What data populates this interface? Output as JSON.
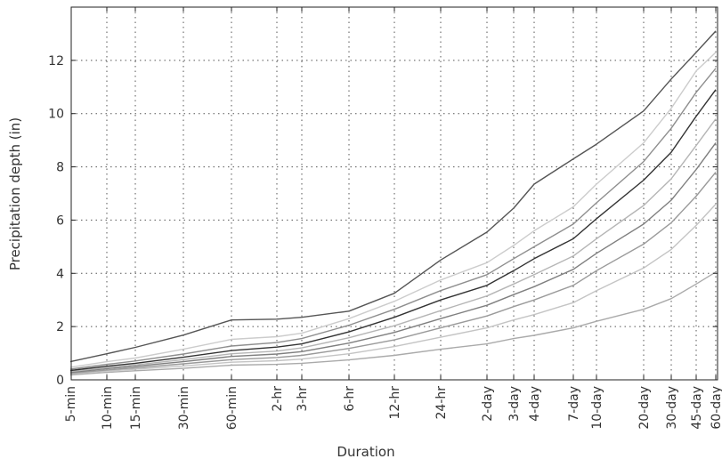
{
  "chart_data": {
    "type": "line",
    "title": "",
    "xlabel": "Duration",
    "ylabel": "Precipitation depth (in)",
    "categories": [
      "5-min",
      "10-min",
      "15-min",
      "30-min",
      "60-min",
      "2-hr",
      "3-hr",
      "6-hr",
      "12-hr",
      "24-hr",
      "2-day",
      "3-day",
      "4-day",
      "7-day",
      "10-day",
      "20-day",
      "30-day",
      "45-day",
      "60-day"
    ],
    "yticks": [
      "0",
      "2",
      "4",
      "6",
      "8",
      "10",
      "12"
    ],
    "ylim": [
      0,
      14
    ],
    "grid": true,
    "legend": "none",
    "series": [
      {
        "color": "#aaaaaa",
        "values": [
          0.18,
          0.28,
          0.34,
          0.43,
          0.55,
          0.58,
          0.62,
          0.75,
          0.92,
          1.15,
          1.35,
          1.55,
          1.67,
          1.95,
          2.2,
          2.65,
          3.05,
          3.6,
          4.05
        ]
      },
      {
        "color": "#c4c4c4",
        "values": [
          0.22,
          0.33,
          0.4,
          0.52,
          0.66,
          0.72,
          0.78,
          0.98,
          1.25,
          1.6,
          1.95,
          2.25,
          2.45,
          2.9,
          3.35,
          4.2,
          4.9,
          5.8,
          6.6
        ]
      },
      {
        "color": "#9a9a9a",
        "values": [
          0.25,
          0.37,
          0.45,
          0.6,
          0.76,
          0.84,
          0.92,
          1.18,
          1.5,
          1.95,
          2.4,
          2.75,
          3.0,
          3.55,
          4.1,
          5.1,
          5.9,
          6.9,
          7.8
        ]
      },
      {
        "color": "#7f7f7f",
        "values": [
          0.28,
          0.42,
          0.51,
          0.68,
          0.88,
          0.97,
          1.06,
          1.38,
          1.78,
          2.3,
          2.8,
          3.2,
          3.5,
          4.15,
          4.75,
          5.85,
          6.75,
          7.9,
          8.9
        ]
      },
      {
        "color": "#b5b5b5",
        "values": [
          0.31,
          0.46,
          0.56,
          0.76,
          0.98,
          1.08,
          1.2,
          1.58,
          2.03,
          2.6,
          3.15,
          3.6,
          3.95,
          4.65,
          5.3,
          6.55,
          7.55,
          8.8,
          9.8
        ]
      },
      {
        "color": "#333333",
        "values": [
          0.35,
          0.51,
          0.62,
          0.85,
          1.1,
          1.23,
          1.35,
          1.8,
          2.35,
          3.0,
          3.55,
          4.1,
          4.55,
          5.3,
          6.05,
          7.5,
          8.55,
          9.9,
          10.9
        ]
      },
      {
        "color": "#8e8e8e",
        "values": [
          0.4,
          0.58,
          0.71,
          0.97,
          1.27,
          1.4,
          1.55,
          2.05,
          2.65,
          3.35,
          3.95,
          4.55,
          5.0,
          5.85,
          6.65,
          8.2,
          9.45,
          10.8,
          11.7
        ]
      },
      {
        "color": "#cccccc",
        "values": [
          0.47,
          0.68,
          0.82,
          1.15,
          1.52,
          1.62,
          1.75,
          2.3,
          2.95,
          3.75,
          4.4,
          5.05,
          5.6,
          6.5,
          7.35,
          8.9,
          10.2,
          11.6,
          12.3
        ]
      },
      {
        "color": "#555555",
        "values": [
          0.68,
          0.98,
          1.22,
          1.68,
          2.25,
          2.28,
          2.35,
          2.58,
          3.25,
          4.5,
          5.55,
          6.45,
          7.35,
          8.3,
          8.85,
          10.1,
          11.3,
          12.3,
          13.1
        ]
      }
    ]
  }
}
